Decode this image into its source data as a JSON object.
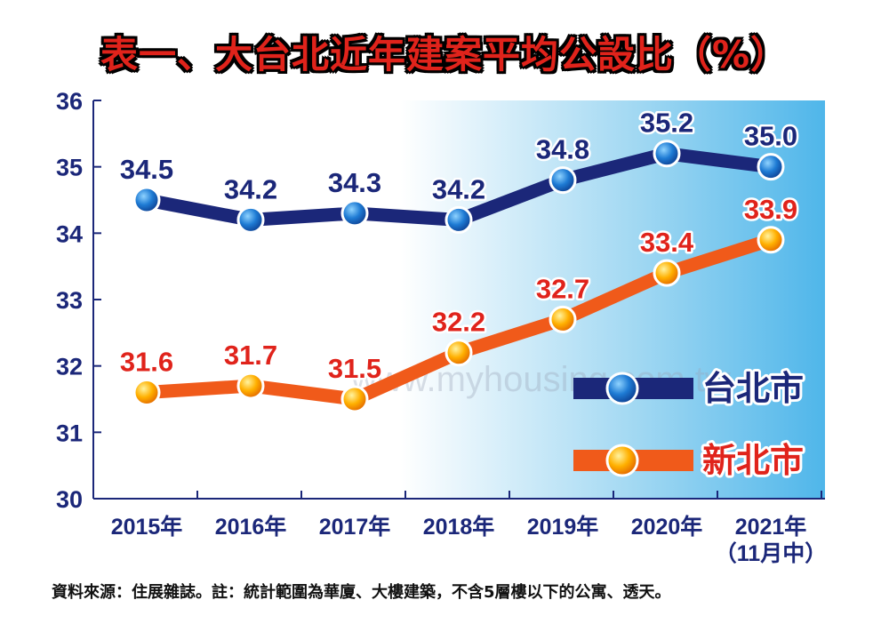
{
  "title": "表一、大台北近年建案平均公設比（%）",
  "source_note": "資料來源：住展雜誌。註：統計範圍為華廈、大樓建築，不含5層樓以下的公寓、透天。",
  "watermark": "www.myhousing.com.tw",
  "chart_data": {
    "type": "line",
    "title": "表一、大台北近年建案平均公設比（%）",
    "categories": [
      "2015年",
      "2016年",
      "2017年",
      "2018年",
      "2019年",
      "2020年",
      "2021年"
    ],
    "category_sublabels": [
      "",
      "",
      "",
      "",
      "",
      "",
      "（11月中）"
    ],
    "ylim": [
      30,
      36
    ],
    "yticks": [
      30,
      31,
      32,
      33,
      34,
      35,
      36
    ],
    "xlabel": "",
    "ylabel": "",
    "grid": false,
    "legend": "right",
    "series": [
      {
        "name": "台北市",
        "color": "#1b2779",
        "marker_color": "#1565c0",
        "label_color": "#1b2779",
        "values": [
          34.5,
          34.2,
          34.3,
          34.2,
          34.8,
          35.2,
          35.0
        ],
        "labels": [
          "34.5",
          "34.2",
          "34.3",
          "34.2",
          "34.8",
          "35.2",
          "35.0"
        ]
      },
      {
        "name": "新北市",
        "color": "#f05a1a",
        "marker_color": "#f7a000",
        "label_color": "#e0231b",
        "values": [
          31.6,
          31.7,
          31.5,
          32.2,
          32.7,
          33.4,
          33.9
        ],
        "labels": [
          "31.6",
          "31.7",
          "31.5",
          "32.2",
          "32.7",
          "33.4",
          "33.9"
        ]
      }
    ]
  }
}
